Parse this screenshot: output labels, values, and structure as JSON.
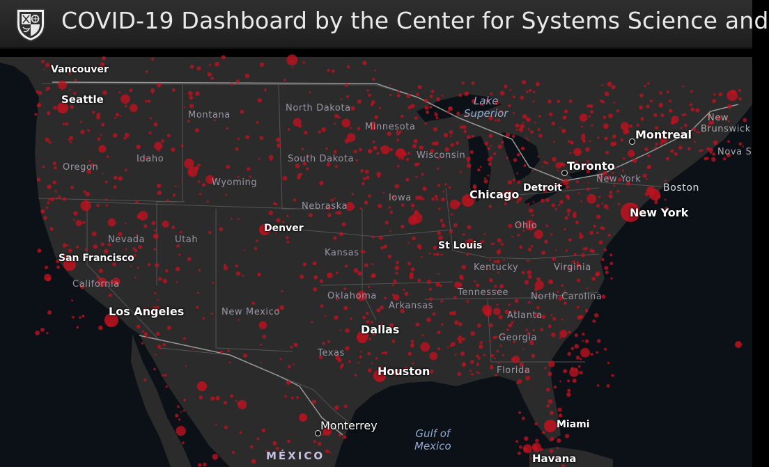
{
  "header": {
    "title": "COVID-19 Dashboard by the Center for Systems Science and"
  },
  "map": {
    "states": [
      "Montana",
      "North Dakota",
      "Minnesota",
      "Wisconsin",
      "Idaho",
      "Oregon",
      "South Dakota",
      "Wyoming",
      "Nebraska",
      "Iowa",
      "Nevada",
      "Utah",
      "Kansas",
      "Ohio",
      "Kentucky",
      "Virginia",
      "California",
      "Oklahoma",
      "Arkansas",
      "Tennessee",
      "North Carolina",
      "New Mexico",
      "Atlanta",
      "Georgia",
      "Texas",
      "Florida",
      "New York"
    ],
    "cities": [
      "Vancouver",
      "Seattle",
      "Montreal",
      "Toronto",
      "Chicago",
      "Detroit",
      "Boston",
      "New York",
      "Denver",
      "San Francisco",
      "St Louis",
      "Los Angeles",
      "Dallas",
      "Houston",
      "Monterrey",
      "Miami",
      "Havana",
      "New",
      "Brunswick",
      "Nova S"
    ],
    "water": {
      "lake_superior_line1": "Lake",
      "lake_superior_line2": "Superior",
      "gulf_line1": "Gulf of",
      "gulf_line2": "Mexico"
    },
    "country": "MÉXICO",
    "colors": {
      "case_bubble": "#c1121f",
      "land": "#2a2a2a",
      "water": "#0b1116",
      "borders": "#5a5a5a"
    }
  }
}
